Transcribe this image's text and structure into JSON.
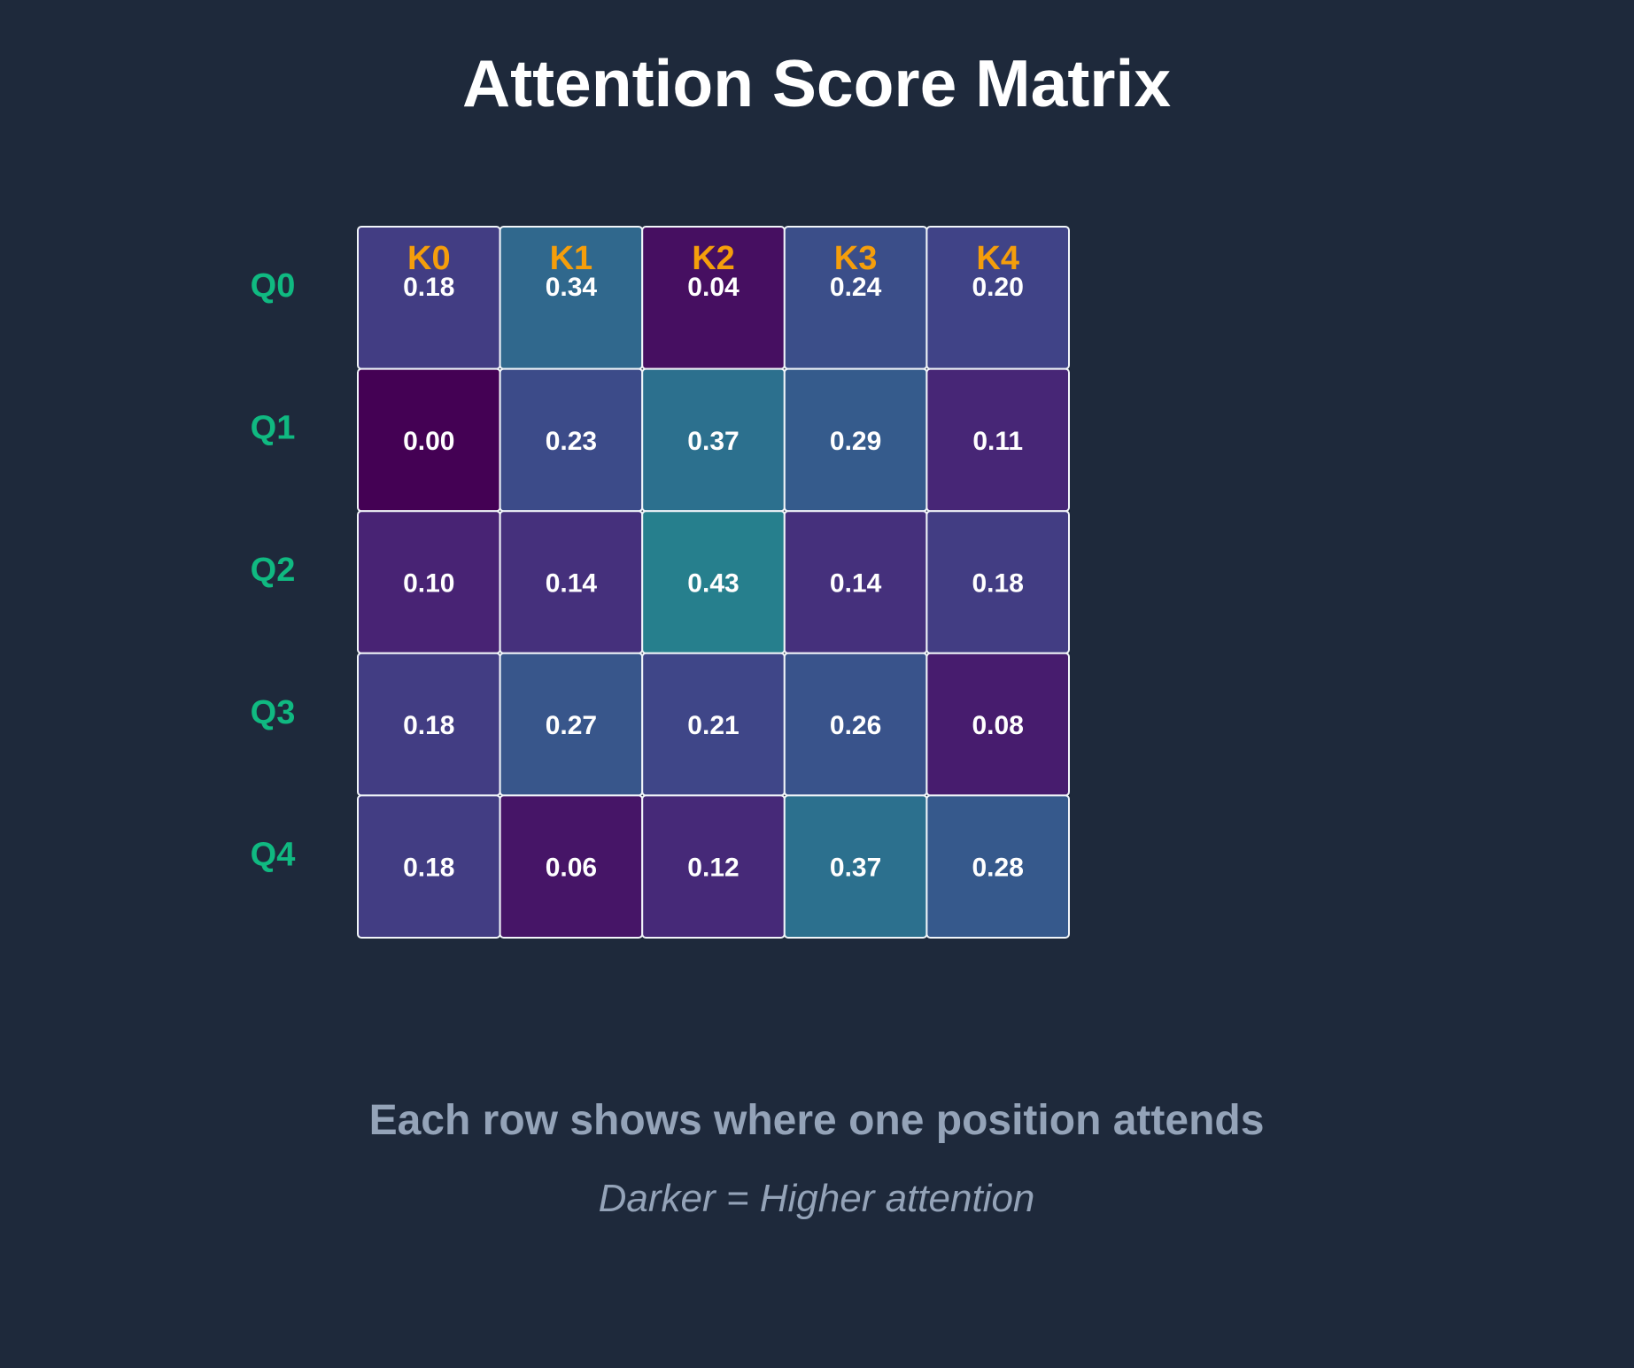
{
  "chart_data": {
    "type": "heatmap",
    "title": "Attention Score Matrix",
    "x_labels": [
      "K0",
      "K1",
      "K2",
      "K3",
      "K4"
    ],
    "y_labels": [
      "Q0",
      "Q1",
      "Q2",
      "Q3",
      "Q4"
    ],
    "values": [
      [
        0.18,
        0.34,
        0.04,
        0.24,
        0.2
      ],
      [
        0.0,
        0.23,
        0.37,
        0.29,
        0.11
      ],
      [
        0.1,
        0.14,
        0.43,
        0.14,
        0.18
      ],
      [
        0.18,
        0.27,
        0.21,
        0.26,
        0.08
      ],
      [
        0.18,
        0.06,
        0.12,
        0.37,
        0.28
      ]
    ],
    "value_format": "0.00",
    "colormap": "viridis",
    "color_range": [
      0.0,
      1.0
    ]
  },
  "subtitle": "Each row shows where one position attends",
  "caption": "Darker = Higher attention",
  "colors": {
    "background": "#1e293b",
    "title": "#ffffff",
    "query_label": "#10b981",
    "key_label": "#f59e0b",
    "cell_border": "#f1f5f9",
    "cell_text": "#ffffff",
    "footer_text": "#94a3b8"
  }
}
